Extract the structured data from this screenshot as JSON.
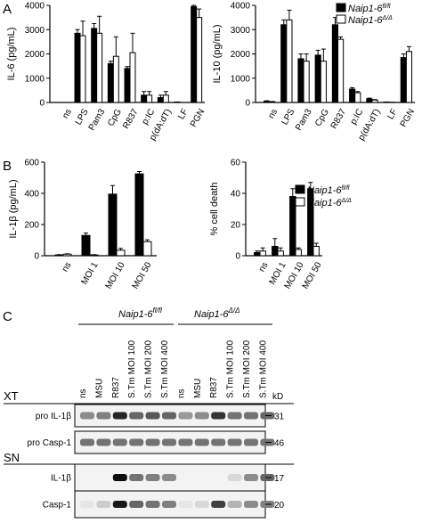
{
  "panel_labels": {
    "a": "A",
    "b": "B",
    "c": "C"
  },
  "legend": {
    "flfl": "Naip1-6",
    "flfl_sup": "fl/fl",
    "del": "Naip1-6",
    "del_sup": "Δ/Δ"
  },
  "colors": {
    "black": "#000000",
    "white": "#ffffff"
  },
  "chart_data": [
    {
      "type": "bar",
      "panel": "A",
      "ylabel": "IL-6 (pg/mL)",
      "ylim": [
        0,
        4000
      ],
      "yticks": [
        0,
        1000,
        2000,
        3000,
        4000
      ],
      "categories": [
        "ns",
        "LPS",
        "Pam3",
        "CpG",
        "R837",
        "p:IC",
        "p(dA:dT)",
        "LF",
        "PGN"
      ],
      "series": [
        {
          "name": "Naip1-6 fl/fl",
          "values": [
            0,
            2850,
            3050,
            1600,
            1400,
            300,
            200,
            20,
            3950
          ],
          "errors": [
            0,
            150,
            200,
            100,
            80,
            150,
            100,
            0,
            50
          ]
        },
        {
          "name": "Naip1-6 Δ/Δ",
          "values": [
            0,
            2750,
            2850,
            1900,
            2050,
            300,
            300,
            0,
            3500
          ],
          "errors": [
            0,
            600,
            700,
            800,
            800,
            150,
            150,
            0,
            350
          ]
        }
      ]
    },
    {
      "type": "bar",
      "panel": "A",
      "ylabel": "IL-10 (pg/mL)",
      "ylim": [
        0,
        4000
      ],
      "yticks": [
        0,
        1000,
        2000,
        3000,
        4000
      ],
      "categories": [
        "ns",
        "LPS",
        "Pam3",
        "CpG",
        "R837",
        "p:IC",
        "p(dA:dT)",
        "LF",
        "PGN"
      ],
      "series": [
        {
          "name": "Naip1-6 fl/fl",
          "values": [
            50,
            3200,
            1800,
            1950,
            3200,
            550,
            150,
            20,
            1850
          ],
          "errors": [
            20,
            200,
            200,
            200,
            300,
            60,
            30,
            0,
            150
          ]
        },
        {
          "name": "Naip1-6 Δ/Δ",
          "values": [
            30,
            3400,
            1700,
            1700,
            2600,
            400,
            100,
            10,
            2100
          ],
          "errors": [
            10,
            400,
            300,
            500,
            100,
            50,
            20,
            0,
            200
          ]
        }
      ]
    },
    {
      "type": "bar",
      "panel": "B",
      "ylabel": "IL-1β (pg/mL)",
      "ylim": [
        0,
        600
      ],
      "yticks": [
        0,
        200,
        400,
        600
      ],
      "categories": [
        "ns",
        "MOI 1",
        "MOI 10",
        "MOI 50"
      ],
      "series": [
        {
          "name": "Naip1-6 fl/fl",
          "values": [
            5,
            130,
            395,
            525
          ],
          "errors": [
            2,
            15,
            55,
            15
          ]
        },
        {
          "name": "Naip1-6 Δ/Δ",
          "values": [
            10,
            5,
            35,
            90
          ],
          "errors": [
            2,
            2,
            12,
            12
          ]
        }
      ]
    },
    {
      "type": "bar",
      "panel": "B",
      "ylabel": "% cell death",
      "ylim": [
        0,
        60
      ],
      "yticks": [
        0,
        20,
        40,
        60
      ],
      "categories": [
        "ns",
        "MOI 1",
        "MOI 10",
        "MOI 50"
      ],
      "series": [
        {
          "name": "Naip1-6 fl/fl",
          "values": [
            2,
            6,
            38,
            43
          ],
          "errors": [
            1,
            5,
            5,
            4
          ]
        },
        {
          "name": "Naip1-6 Δ/Δ",
          "values": [
            3,
            3,
            4,
            6
          ],
          "errors": [
            2,
            2,
            1,
            2
          ]
        }
      ]
    }
  ],
  "blot": {
    "group1": "Naip1-6",
    "group1_sup": "fl/fl",
    "group2": "Naip1-6",
    "group2_sup": "Δ/Δ",
    "lanes": [
      "ns",
      "MSU",
      "R837",
      "S.Tm MOI 100",
      "S.Tm MOI 200",
      "S.Tm MOI 400",
      "ns",
      "MSU",
      "R837",
      "S.Tm MOI 100",
      "S.Tm MOI 200",
      "S.Tm MOI 400"
    ],
    "kd_label": "kD",
    "xt": "XT",
    "sn": "SN",
    "rows": [
      {
        "label": "pro IL-1β",
        "kd": "31"
      },
      {
        "label": "pro Casp-1",
        "kd": "46"
      },
      {
        "label": "IL-1β",
        "kd": "17"
      },
      {
        "label": "Casp-1",
        "kd": "20"
      }
    ]
  }
}
